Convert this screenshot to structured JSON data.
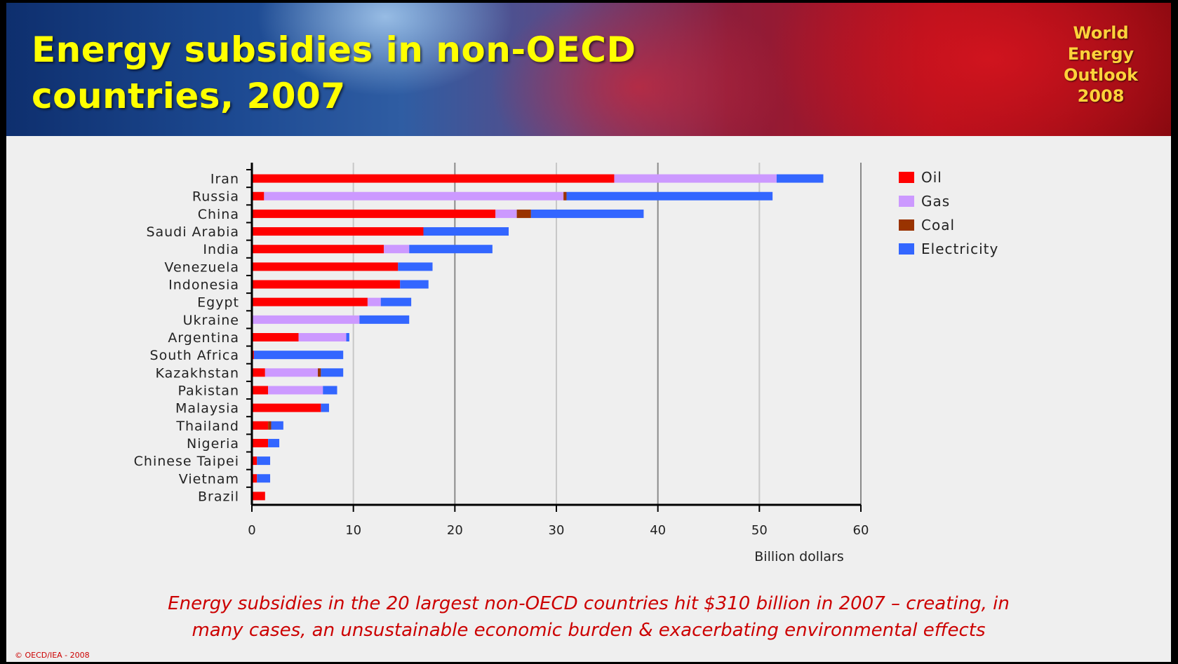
{
  "banner": {
    "title_line1": "Energy subsidies in non-OECD",
    "title_line2": "countries, 2007",
    "badge_lines": [
      "World",
      "Energy",
      "Outlook",
      "2008"
    ]
  },
  "colors": {
    "oil": "#ff0000",
    "gas": "#cc99ff",
    "coal": "#993300",
    "electricity": "#3366ff",
    "title_text": "#ffff00",
    "conclusion_text": "#cc0000"
  },
  "chart_data": {
    "type": "bar",
    "orientation": "horizontal",
    "stacked": true,
    "categories": [
      "Iran",
      "Russia",
      "China",
      "Saudi Arabia",
      "India",
      "Venezuela",
      "Indonesia",
      "Egypt",
      "Ukraine",
      "Argentina",
      "South Africa",
      "Kazakhstan",
      "Pakistan",
      "Malaysia",
      "Thailand",
      "Nigeria",
      "Chinese Taipei",
      "Vietnam",
      "Brazil"
    ],
    "series": [
      {
        "name": "Oil",
        "color": "#ff0000",
        "values": [
          35.7,
          1.2,
          24.0,
          16.9,
          13.0,
          14.4,
          14.6,
          11.4,
          0.0,
          4.6,
          0.2,
          1.3,
          1.6,
          6.8,
          1.6,
          1.6,
          0.5,
          0.5,
          1.3
        ]
      },
      {
        "name": "Gas",
        "color": "#cc99ff",
        "values": [
          16.0,
          29.5,
          2.1,
          0.0,
          2.5,
          0.0,
          0.0,
          1.3,
          10.6,
          4.7,
          0.0,
          5.2,
          5.4,
          0.0,
          0.0,
          0.0,
          0.0,
          0.0,
          0.0
        ]
      },
      {
        "name": "Coal",
        "color": "#993300",
        "values": [
          0.0,
          0.3,
          1.4,
          0.0,
          0.0,
          0.0,
          0.0,
          0.0,
          0.0,
          0.0,
          0.0,
          0.3,
          0.0,
          0.0,
          0.3,
          0.0,
          0.0,
          0.0,
          0.0
        ]
      },
      {
        "name": "Electricity",
        "color": "#3366ff",
        "values": [
          4.6,
          20.3,
          11.1,
          8.4,
          8.2,
          3.4,
          2.8,
          3.0,
          4.9,
          0.3,
          8.8,
          2.2,
          1.4,
          0.8,
          1.2,
          1.1,
          1.3,
          1.3,
          0.0
        ]
      }
    ],
    "xlabel": "Billion dollars",
    "ylabel": "",
    "xlim": [
      0,
      60
    ],
    "xticks": [
      0,
      10,
      20,
      30,
      40,
      50,
      60
    ],
    "grid": true,
    "legend_position": "right"
  },
  "footer": {
    "conclusion_line1": "Energy subsidies in the 20 largest non-OECD countries hit $310 billion in 2007 – creating, in",
    "conclusion_line2": "many cases, an unsustainable economic burden & exacerbating environmental effects",
    "copyright": "© OECD/IEA - 2008"
  }
}
